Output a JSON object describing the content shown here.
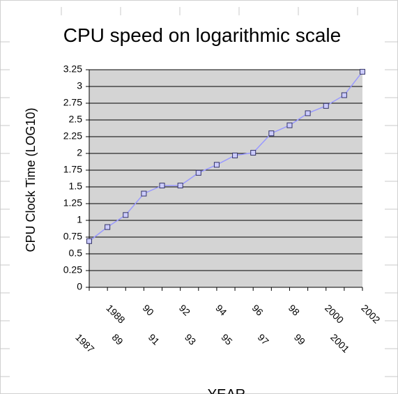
{
  "chart_data": {
    "type": "line",
    "title": "CPU speed on logarithmic scale",
    "y_label": "CPU Clock Time (LOG10)",
    "x_label": "YEAR",
    "categories": [
      "1987",
      "1988",
      "89",
      "90",
      "91",
      "92",
      "93",
      "94",
      "95",
      "96",
      "97",
      "98",
      "99",
      "2000",
      "2001",
      "2002"
    ],
    "values": [
      0.69,
      0.9,
      1.08,
      1.4,
      1.52,
      1.52,
      1.71,
      1.83,
      1.97,
      2.01,
      2.3,
      2.42,
      2.6,
      2.71,
      2.87,
      3.22
    ],
    "color": "#9999ff",
    "marker_color": "#ccccff",
    "ylim": [
      0,
      3.25
    ],
    "yticks": [
      0,
      0.25,
      0.5,
      0.75,
      1,
      1.25,
      1.5,
      1.75,
      2,
      2.25,
      2.5,
      2.75,
      3,
      3.25
    ],
    "grid": true
  }
}
